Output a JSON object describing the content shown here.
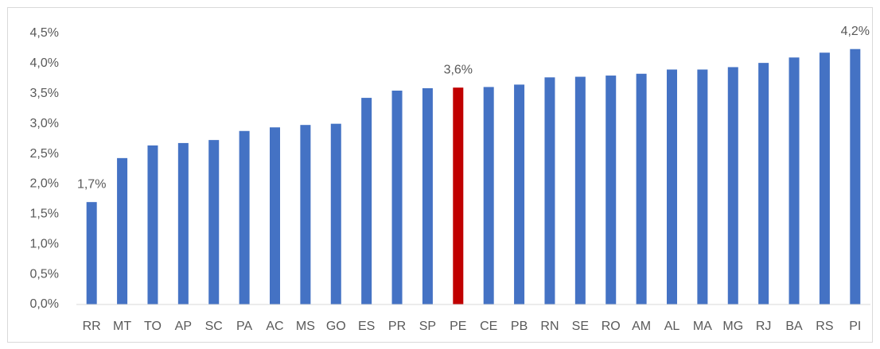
{
  "chart_data": {
    "type": "bar",
    "categories": [
      "RR",
      "MT",
      "TO",
      "AP",
      "SC",
      "PA",
      "AC",
      "MS",
      "GO",
      "ES",
      "PR",
      "SP",
      "PE",
      "CE",
      "PB",
      "RN",
      "SE",
      "RO",
      "AM",
      "AL",
      "MA",
      "MG",
      "RJ",
      "BA",
      "RS",
      "PI"
    ],
    "values": [
      1.7,
      2.43,
      2.64,
      2.68,
      2.73,
      2.88,
      2.94,
      2.98,
      3.0,
      3.43,
      3.55,
      3.59,
      3.6,
      3.61,
      3.65,
      3.77,
      3.78,
      3.8,
      3.83,
      3.9,
      3.9,
      3.94,
      4.01,
      4.1,
      4.18,
      4.24
    ],
    "value_labels": [
      "1,7%",
      null,
      null,
      null,
      null,
      null,
      null,
      null,
      null,
      null,
      null,
      null,
      "3,6%",
      null,
      null,
      null,
      null,
      null,
      null,
      null,
      null,
      null,
      null,
      null,
      null,
      "4,2%"
    ],
    "colors": [
      "#4472c4",
      "#4472c4",
      "#4472c4",
      "#4472c4",
      "#4472c4",
      "#4472c4",
      "#4472c4",
      "#4472c4",
      "#4472c4",
      "#4472c4",
      "#4472c4",
      "#4472c4",
      "#c00000",
      "#4472c4",
      "#4472c4",
      "#4472c4",
      "#4472c4",
      "#4472c4",
      "#4472c4",
      "#4472c4",
      "#4472c4",
      "#4472c4",
      "#4472c4",
      "#4472c4",
      "#4472c4",
      "#4472c4"
    ],
    "ylim": [
      0,
      4.5
    ],
    "yticks": [
      {
        "value": 0,
        "label": "0,0%"
      },
      {
        "value": 0.5,
        "label": "0,5%"
      },
      {
        "value": 1,
        "label": "1,0%"
      },
      {
        "value": 1.5,
        "label": "1,5%"
      },
      {
        "value": 2,
        "label": "2,0%"
      },
      {
        "value": 2.5,
        "label": "2,5%"
      },
      {
        "value": 3,
        "label": "3,0%"
      },
      {
        "value": 3.5,
        "label": "3,5%"
      },
      {
        "value": 4,
        "label": "4,0%"
      },
      {
        "value": 4.5,
        "label": "4,5%"
      }
    ],
    "grid": false
  }
}
